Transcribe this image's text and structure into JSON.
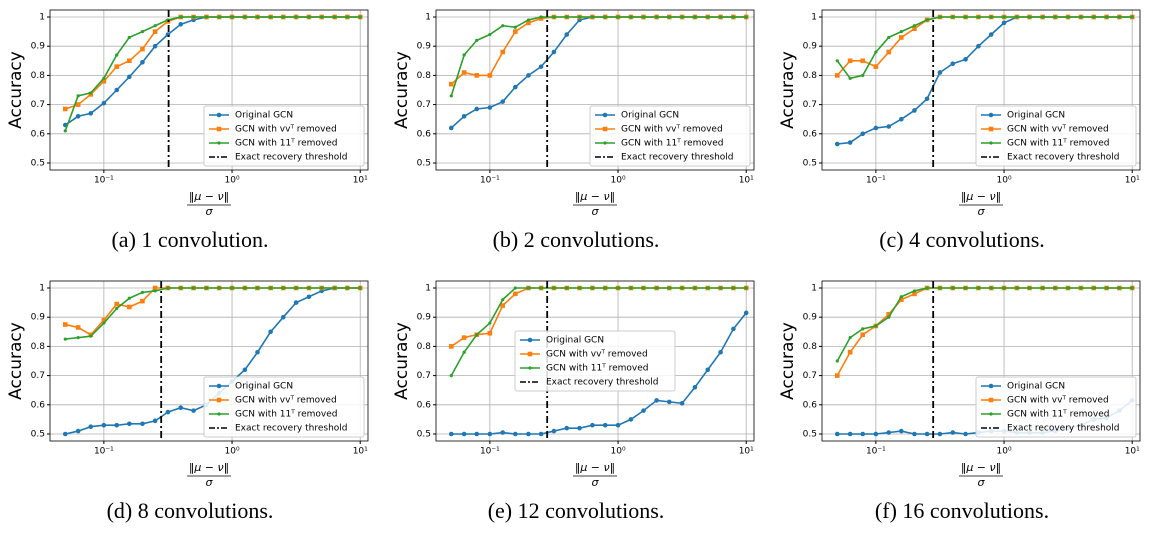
{
  "chart_data": [
    {
      "type": "line",
      "caption": "(a) 1 convolution.",
      "ylabel": "Accuracy",
      "xlabel_numerator": "‖μ − ν‖",
      "xlabel_denominator": "σ",
      "xscale": "log",
      "grid": true,
      "legend": "lower right",
      "x": [
        0.05,
        0.063,
        0.079,
        0.1,
        0.126,
        0.158,
        0.2,
        0.251,
        0.316,
        0.398,
        0.501,
        0.631,
        0.794,
        1,
        1.26,
        1.58,
        2,
        2.51,
        3.16,
        3.98,
        5.01,
        6.31,
        7.94,
        10
      ],
      "xlim": [
        0.038,
        11.5
      ],
      "ylim": [
        0.476,
        1.024
      ],
      "yticks": [
        0.5,
        0.6,
        0.7,
        0.8,
        0.9,
        1.0
      ],
      "xticks": [
        {
          "value": 0.1,
          "label": "10⁻¹"
        },
        {
          "value": 1,
          "label": "10⁰"
        },
        {
          "value": 10,
          "label": "10¹"
        }
      ],
      "threshold": {
        "name": "Exact recovery threshold",
        "x": 0.32
      },
      "series": [
        {
          "name": "Original GCN",
          "color": "#1f77b4",
          "values": [
            0.63,
            0.66,
            0.67,
            0.705,
            0.75,
            0.795,
            0.845,
            0.9,
            0.94,
            0.975,
            0.99,
            1,
            1,
            1,
            1,
            1,
            1,
            1,
            1,
            1,
            1,
            1,
            1,
            1
          ]
        },
        {
          "name": "GCN with vvᵀ removed",
          "color": "#ff7f0e",
          "values": [
            0.685,
            0.7,
            0.735,
            0.78,
            0.83,
            0.85,
            0.89,
            0.95,
            0.985,
            1,
            1,
            1,
            1,
            1,
            1,
            1,
            1,
            1,
            1,
            1,
            1,
            1,
            1,
            1
          ]
        },
        {
          "name": "GCN with 11ᵀ removed",
          "color": "#2ca02c",
          "values": [
            0.61,
            0.73,
            0.74,
            0.79,
            0.87,
            0.93,
            0.95,
            0.97,
            0.99,
            1,
            1,
            1,
            1,
            1,
            1,
            1,
            1,
            1,
            1,
            1,
            1,
            1,
            1,
            1
          ]
        }
      ]
    },
    {
      "type": "line",
      "caption": "(b) 2 convolutions.",
      "ylabel": "Accuracy",
      "xlabel_numerator": "‖μ − ν‖",
      "xlabel_denominator": "σ",
      "xscale": "log",
      "grid": true,
      "legend": "lower right",
      "x": [
        0.05,
        0.063,
        0.079,
        0.1,
        0.126,
        0.158,
        0.2,
        0.251,
        0.316,
        0.398,
        0.501,
        0.631,
        0.794,
        1,
        1.26,
        1.58,
        2,
        2.51,
        3.16,
        3.98,
        5.01,
        6.31,
        7.94,
        10
      ],
      "xlim": [
        0.038,
        11.5
      ],
      "ylim": [
        0.476,
        1.024
      ],
      "yticks": [
        0.5,
        0.6,
        0.7,
        0.8,
        0.9,
        1.0
      ],
      "xticks": [
        {
          "value": 0.1,
          "label": "10⁻¹"
        },
        {
          "value": 1,
          "label": "10⁰"
        },
        {
          "value": 10,
          "label": "10¹"
        }
      ],
      "threshold": {
        "name": "Exact recovery threshold",
        "x": 0.28
      },
      "series": [
        {
          "name": "Original GCN",
          "color": "#1f77b4",
          "values": [
            0.62,
            0.66,
            0.685,
            0.69,
            0.71,
            0.76,
            0.8,
            0.83,
            0.88,
            0.94,
            0.99,
            1,
            1,
            1,
            1,
            1,
            1,
            1,
            1,
            1,
            1,
            1,
            1,
            1
          ]
        },
        {
          "name": "GCN with vvᵀ removed",
          "color": "#ff7f0e",
          "values": [
            0.77,
            0.81,
            0.8,
            0.8,
            0.88,
            0.95,
            0.98,
            0.995,
            1,
            1,
            1,
            1,
            1,
            1,
            1,
            1,
            1,
            1,
            1,
            1,
            1,
            1,
            1,
            1
          ]
        },
        {
          "name": "GCN with 11ᵀ removed",
          "color": "#2ca02c",
          "values": [
            0.73,
            0.87,
            0.92,
            0.94,
            0.97,
            0.965,
            0.99,
            1,
            1,
            1,
            1,
            1,
            1,
            1,
            1,
            1,
            1,
            1,
            1,
            1,
            1,
            1,
            1,
            1
          ]
        }
      ]
    },
    {
      "type": "line",
      "caption": "(c) 4 convolutions.",
      "ylabel": "Accuracy",
      "xlabel_numerator": "‖μ − ν‖",
      "xlabel_denominator": "σ",
      "xscale": "log",
      "grid": true,
      "legend": "lower right",
      "x": [
        0.05,
        0.063,
        0.079,
        0.1,
        0.126,
        0.158,
        0.2,
        0.251,
        0.316,
        0.398,
        0.501,
        0.631,
        0.794,
        1,
        1.26,
        1.58,
        2,
        2.51,
        3.16,
        3.98,
        5.01,
        6.31,
        7.94,
        10
      ],
      "xlim": [
        0.038,
        11.5
      ],
      "ylim": [
        0.476,
        1.024
      ],
      "yticks": [
        0.5,
        0.6,
        0.7,
        0.8,
        0.9,
        1.0
      ],
      "xticks": [
        {
          "value": 0.1,
          "label": "10⁻¹"
        },
        {
          "value": 1,
          "label": "10⁰"
        },
        {
          "value": 10,
          "label": "10¹"
        }
      ],
      "threshold": {
        "name": "Exact recovery threshold",
        "x": 0.28
      },
      "series": [
        {
          "name": "Original GCN",
          "color": "#1f77b4",
          "values": [
            0.565,
            0.57,
            0.6,
            0.62,
            0.625,
            0.65,
            0.68,
            0.72,
            0.81,
            0.84,
            0.855,
            0.9,
            0.94,
            0.98,
            1,
            1,
            1,
            1,
            1,
            1,
            1,
            1,
            1,
            1
          ]
        },
        {
          "name": "GCN with vvᵀ removed",
          "color": "#ff7f0e",
          "values": [
            0.8,
            0.85,
            0.85,
            0.83,
            0.88,
            0.93,
            0.96,
            0.99,
            1,
            1,
            1,
            1,
            1,
            1,
            1,
            1,
            1,
            1,
            1,
            1,
            1,
            1,
            1,
            1
          ]
        },
        {
          "name": "GCN with 11ᵀ removed",
          "color": "#2ca02c",
          "values": [
            0.85,
            0.79,
            0.8,
            0.88,
            0.93,
            0.95,
            0.97,
            0.99,
            1,
            1,
            1,
            1,
            1,
            1,
            1,
            1,
            1,
            1,
            1,
            1,
            1,
            1,
            1,
            1
          ]
        }
      ]
    },
    {
      "type": "line",
      "caption": "(d) 8 convolutions.",
      "ylabel": "Accuracy",
      "xlabel_numerator": "‖μ − ν‖",
      "xlabel_denominator": "σ",
      "xscale": "log",
      "grid": true,
      "legend": "lower right",
      "x": [
        0.05,
        0.063,
        0.079,
        0.1,
        0.126,
        0.158,
        0.2,
        0.251,
        0.316,
        0.398,
        0.501,
        0.631,
        0.794,
        1,
        1.26,
        1.58,
        2,
        2.51,
        3.16,
        3.98,
        5.01,
        6.31,
        7.94,
        10
      ],
      "xlim": [
        0.038,
        11.5
      ],
      "ylim": [
        0.476,
        1.024
      ],
      "yticks": [
        0.5,
        0.6,
        0.7,
        0.8,
        0.9,
        1.0
      ],
      "xticks": [
        {
          "value": 0.1,
          "label": "10⁻¹"
        },
        {
          "value": 1,
          "label": "10⁰"
        },
        {
          "value": 10,
          "label": "10¹"
        }
      ],
      "threshold": {
        "name": "Exact recovery threshold",
        "x": 0.28
      },
      "series": [
        {
          "name": "Original GCN",
          "color": "#1f77b4",
          "values": [
            0.5,
            0.51,
            0.525,
            0.53,
            0.53,
            0.535,
            0.535,
            0.545,
            0.575,
            0.59,
            0.58,
            0.6,
            0.64,
            0.68,
            0.72,
            0.78,
            0.85,
            0.9,
            0.95,
            0.97,
            0.99,
            1,
            1,
            1
          ]
        },
        {
          "name": "GCN with vvᵀ removed",
          "color": "#ff7f0e",
          "values": [
            0.875,
            0.865,
            0.84,
            0.89,
            0.945,
            0.935,
            0.955,
            1,
            1,
            1,
            1,
            1,
            1,
            1,
            1,
            1,
            1,
            1,
            1,
            1,
            1,
            1,
            1,
            1
          ]
        },
        {
          "name": "GCN with 11ᵀ removed",
          "color": "#2ca02c",
          "values": [
            0.825,
            0.83,
            0.835,
            0.88,
            0.93,
            0.965,
            0.985,
            0.99,
            1,
            1,
            1,
            1,
            1,
            1,
            1,
            1,
            1,
            1,
            1,
            1,
            1,
            1,
            1,
            1
          ]
        }
      ]
    },
    {
      "type": "line",
      "caption": "(e) 12 convolutions.",
      "ylabel": "Accuracy",
      "xlabel_numerator": "‖μ − ν‖",
      "xlabel_denominator": "σ",
      "xscale": "log",
      "grid": true,
      "legend": "center",
      "x": [
        0.05,
        0.063,
        0.079,
        0.1,
        0.126,
        0.158,
        0.2,
        0.251,
        0.316,
        0.398,
        0.501,
        0.631,
        0.794,
        1,
        1.26,
        1.58,
        2,
        2.51,
        3.16,
        3.98,
        5.01,
        6.31,
        7.94,
        10
      ],
      "xlim": [
        0.038,
        11.5
      ],
      "ylim": [
        0.476,
        1.024
      ],
      "yticks": [
        0.5,
        0.6,
        0.7,
        0.8,
        0.9,
        1.0
      ],
      "xticks": [
        {
          "value": 0.1,
          "label": "10⁻¹"
        },
        {
          "value": 1,
          "label": "10⁰"
        },
        {
          "value": 10,
          "label": "10¹"
        }
      ],
      "threshold": {
        "name": "Exact recovery threshold",
        "x": 0.28
      },
      "series": [
        {
          "name": "Original GCN",
          "color": "#1f77b4",
          "values": [
            0.5,
            0.5,
            0.5,
            0.5,
            0.505,
            0.5,
            0.5,
            0.5,
            0.51,
            0.52,
            0.52,
            0.53,
            0.53,
            0.53,
            0.55,
            0.58,
            0.615,
            0.61,
            0.605,
            0.66,
            0.72,
            0.78,
            0.86,
            0.915
          ]
        },
        {
          "name": "GCN with vvᵀ removed",
          "color": "#ff7f0e",
          "values": [
            0.8,
            0.83,
            0.84,
            0.845,
            0.94,
            0.98,
            1,
            1,
            1,
            1,
            1,
            1,
            1,
            1,
            1,
            1,
            1,
            1,
            1,
            1,
            1,
            1,
            1,
            1
          ]
        },
        {
          "name": "GCN with 11ᵀ removed",
          "color": "#2ca02c",
          "values": [
            0.7,
            0.78,
            0.84,
            0.88,
            0.96,
            1,
            1,
            1,
            1,
            1,
            1,
            1,
            1,
            1,
            1,
            1,
            1,
            1,
            1,
            1,
            1,
            1,
            1,
            1
          ]
        }
      ]
    },
    {
      "type": "line",
      "caption": "(f) 16 convolutions.",
      "ylabel": "Accuracy",
      "xlabel_numerator": "‖μ − ν‖",
      "xlabel_denominator": "σ",
      "xscale": "log",
      "grid": true,
      "legend": "lower right",
      "x": [
        0.05,
        0.063,
        0.079,
        0.1,
        0.126,
        0.158,
        0.2,
        0.251,
        0.316,
        0.398,
        0.501,
        0.631,
        0.794,
        1,
        1.26,
        1.58,
        2,
        2.51,
        3.16,
        3.98,
        5.01,
        6.31,
        7.94,
        10
      ],
      "xlim": [
        0.038,
        11.5
      ],
      "ylim": [
        0.476,
        1.024
      ],
      "yticks": [
        0.5,
        0.6,
        0.7,
        0.8,
        0.9,
        1.0
      ],
      "xticks": [
        {
          "value": 0.1,
          "label": "10⁻¹"
        },
        {
          "value": 1,
          "label": "10⁰"
        },
        {
          "value": 10,
          "label": "10¹"
        }
      ],
      "threshold": {
        "name": "Exact recovery threshold",
        "x": 0.28
      },
      "series": [
        {
          "name": "Original GCN",
          "color": "#1f77b4",
          "values": [
            0.5,
            0.5,
            0.5,
            0.5,
            0.505,
            0.51,
            0.5,
            0.5,
            0.5,
            0.505,
            0.5,
            0.505,
            0.51,
            0.51,
            0.505,
            0.505,
            0.505,
            0.51,
            0.52,
            0.53,
            0.55,
            0.555,
            0.58,
            0.615
          ]
        },
        {
          "name": "GCN with vvᵀ removed",
          "color": "#ff7f0e",
          "values": [
            0.7,
            0.78,
            0.84,
            0.87,
            0.91,
            0.96,
            0.98,
            1,
            1,
            1,
            1,
            1,
            1,
            1,
            1,
            1,
            1,
            1,
            1,
            1,
            1,
            1,
            1,
            1
          ]
        },
        {
          "name": "GCN with 11ᵀ removed",
          "color": "#2ca02c",
          "values": [
            0.75,
            0.83,
            0.86,
            0.87,
            0.9,
            0.97,
            0.99,
            1,
            1,
            1,
            1,
            1,
            1,
            1,
            1,
            1,
            1,
            1,
            1,
            1,
            1,
            1,
            1,
            1
          ]
        }
      ]
    }
  ]
}
